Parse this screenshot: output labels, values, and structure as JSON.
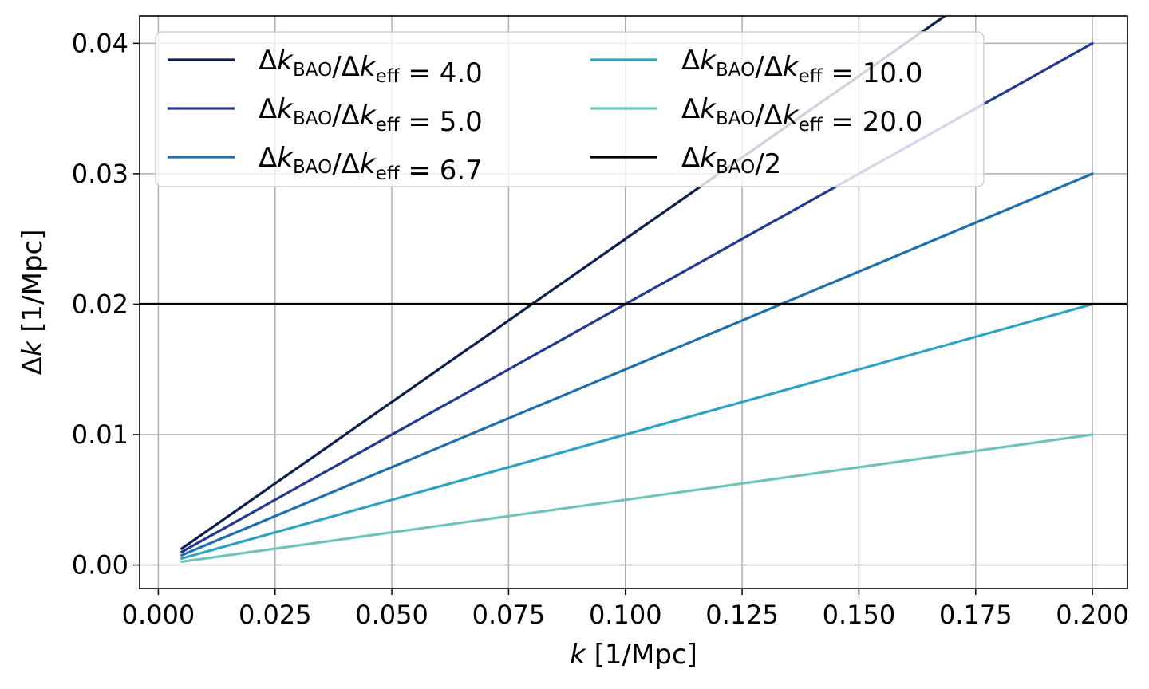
{
  "chart_data": {
    "type": "line",
    "xlabel": "k [1/Mpc]",
    "ylabel": "Δk [1/Mpc]",
    "xlim": [
      -0.004,
      0.2075
    ],
    "ylim": [
      -0.0018,
      0.0421
    ],
    "grid": true,
    "legend_position": "top-left",
    "xticks": [
      0.0,
      0.025,
      0.05,
      0.075,
      0.1,
      0.125,
      0.15,
      0.175,
      0.2
    ],
    "xtick_labels": [
      "0.000",
      "0.025",
      "0.050",
      "0.075",
      "0.100",
      "0.125",
      "0.150",
      "0.175",
      "0.200"
    ],
    "yticks": [
      0.0,
      0.01,
      0.02,
      0.03,
      0.04
    ],
    "ytick_labels": [
      "0.00",
      "0.01",
      "0.02",
      "0.03",
      "0.04"
    ],
    "series": [
      {
        "name": "Δk_BAO/Δk_eff = 4.0",
        "label_main": "Δk",
        "label_sub": "BAO",
        "label_mid": "/Δk",
        "label_sub2": "eff",
        "label_tail": " =  4.0",
        "color": "#0c1f4f",
        "x": [
          0.005,
          0.2
        ],
        "y": [
          0.00125,
          0.05
        ]
      },
      {
        "name": "Δk_BAO/Δk_eff = 5.0",
        "label_main": "Δk",
        "label_sub": "BAO",
        "label_mid": "/Δk",
        "label_sub2": "eff",
        "label_tail": " =  5.0",
        "color": "#253a8f",
        "x": [
          0.005,
          0.2
        ],
        "y": [
          0.001,
          0.04
        ]
      },
      {
        "name": "Δk_BAO/Δk_eff = 6.7",
        "label_main": "Δk",
        "label_sub": "BAO",
        "label_mid": "/Δk",
        "label_sub2": "eff",
        "label_tail": " =  6.7",
        "color": "#1f6fad",
        "x": [
          0.005,
          0.2
        ],
        "y": [
          0.00075,
          0.03
        ]
      },
      {
        "name": "Δk_BAO/Δk_eff = 10.0",
        "label_main": "Δk",
        "label_sub": "BAO",
        "label_mid": "/Δk",
        "label_sub2": "eff",
        "label_tail": " =  10.0",
        "color": "#2ea3c1",
        "x": [
          0.005,
          0.2
        ],
        "y": [
          0.0005,
          0.02
        ]
      },
      {
        "name": "Δk_BAO/Δk_eff = 20.0",
        "label_main": "Δk",
        "label_sub": "BAO",
        "label_mid": "/Δk",
        "label_sub2": "eff",
        "label_tail": " =  20.0",
        "color": "#6fc4b8",
        "x": [
          0.005,
          0.2
        ],
        "y": [
          0.00025,
          0.01
        ]
      }
    ],
    "hline": {
      "name": "Δk_BAO/2",
      "label_main": "Δk",
      "label_sub": "BAO",
      "label_tail": "/2",
      "color": "#000000",
      "y": 0.02
    }
  }
}
